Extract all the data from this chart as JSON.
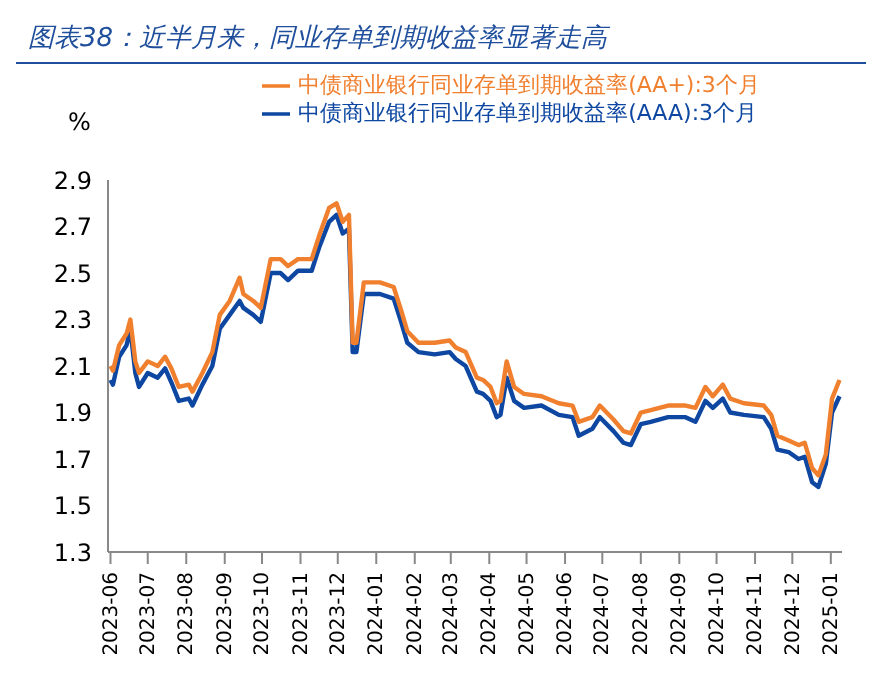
{
  "chart_data": {
    "type": "line",
    "title": "图表38：近半月来，同业存单到期收益率显著走高",
    "ylabel": "%",
    "x": [
      "2023-06-01",
      "2023-06-03",
      "2023-06-08",
      "2023-06-14",
      "2023-06-17",
      "2023-06-21",
      "2023-06-24",
      "2023-07-01",
      "2023-07-09",
      "2023-07-15",
      "2023-07-20",
      "2023-07-26",
      "2023-08-03",
      "2023-08-06",
      "2023-08-14",
      "2023-08-22",
      "2023-08-28",
      "2023-09-05",
      "2023-09-13",
      "2023-09-16",
      "2023-09-24",
      "2023-09-30",
      "2023-10-08",
      "2023-10-16",
      "2023-10-22",
      "2023-10-30",
      "2023-11-10",
      "2023-11-16",
      "2023-11-24",
      "2023-11-30",
      "2023-12-05",
      "2023-12-10",
      "2023-12-13",
      "2023-12-16",
      "2023-12-22",
      "2024-01-04",
      "2024-01-15",
      "2024-01-21",
      "2024-01-26",
      "2024-02-04",
      "2024-02-17",
      "2024-02-29",
      "2024-03-05",
      "2024-03-13",
      "2024-03-22",
      "2024-03-27",
      "2024-04-02",
      "2024-04-07",
      "2024-04-10",
      "2024-04-15",
      "2024-04-21",
      "2024-04-29",
      "2024-05-13",
      "2024-05-27",
      "2024-06-07",
      "2024-06-12",
      "2024-06-23",
      "2024-06-29",
      "2024-07-10",
      "2024-07-18",
      "2024-07-24",
      "2024-08-01",
      "2024-08-09",
      "2024-08-23",
      "2024-09-06",
      "2024-09-14",
      "2024-09-22",
      "2024-09-28",
      "2024-10-06",
      "2024-10-12",
      "2024-10-23",
      "2024-11-08",
      "2024-11-14",
      "2024-11-19",
      "2024-11-28",
      "2024-12-06",
      "2024-12-11",
      "2024-12-17",
      "2024-12-22",
      "2024-12-28",
      "2025-01-02",
      "2025-01-08"
    ],
    "series": [
      {
        "name": "中债商业银行同业存单到期收益率(AAA):3个月",
        "color": "#0d47a1",
        "values": [
          2.04,
          2.02,
          2.14,
          2.19,
          2.26,
          2.07,
          2.01,
          2.07,
          2.05,
          2.09,
          2.03,
          1.95,
          1.96,
          1.93,
          2.02,
          2.1,
          2.26,
          2.32,
          2.38,
          2.35,
          2.32,
          2.29,
          2.5,
          2.5,
          2.47,
          2.51,
          2.51,
          2.61,
          2.72,
          2.75,
          2.67,
          2.69,
          2.16,
          2.16,
          2.41,
          2.41,
          2.39,
          2.29,
          2.2,
          2.16,
          2.15,
          2.16,
          2.13,
          2.1,
          1.99,
          1.98,
          1.95,
          1.88,
          1.89,
          2.05,
          1.95,
          1.92,
          1.93,
          1.89,
          1.88,
          1.8,
          1.83,
          1.88,
          1.82,
          1.77,
          1.76,
          1.85,
          1.86,
          1.88,
          1.88,
          1.86,
          1.95,
          1.92,
          1.96,
          1.9,
          1.89,
          1.88,
          1.83,
          1.74,
          1.73,
          1.7,
          1.71,
          1.6,
          1.58,
          1.68,
          1.9,
          1.97
        ]
      },
      {
        "name": "中债商业银行同业存单到期收益率(AA+):3个月",
        "color": "#f07f2e",
        "values": [
          2.1,
          2.08,
          2.19,
          2.24,
          2.3,
          2.12,
          2.07,
          2.12,
          2.1,
          2.14,
          2.09,
          2.01,
          2.02,
          1.99,
          2.07,
          2.16,
          2.32,
          2.38,
          2.48,
          2.41,
          2.38,
          2.35,
          2.56,
          2.56,
          2.53,
          2.56,
          2.56,
          2.66,
          2.78,
          2.8,
          2.72,
          2.75,
          2.2,
          2.2,
          2.46,
          2.46,
          2.44,
          2.34,
          2.25,
          2.2,
          2.2,
          2.21,
          2.18,
          2.16,
          2.05,
          2.04,
          2.01,
          1.94,
          1.95,
          2.12,
          2.01,
          1.98,
          1.97,
          1.94,
          1.93,
          1.86,
          1.88,
          1.93,
          1.87,
          1.82,
          1.81,
          1.9,
          1.91,
          1.93,
          1.93,
          1.92,
          2.01,
          1.97,
          2.02,
          1.96,
          1.94,
          1.93,
          1.89,
          1.8,
          1.78,
          1.76,
          1.77,
          1.66,
          1.63,
          1.72,
          1.96,
          2.04
        ]
      }
    ],
    "xlim": [
      "2023-05-30",
      "2025-01-10"
    ],
    "xticks": [
      "2023-06",
      "2023-07",
      "2023-08",
      "2023-09",
      "2023-10",
      "2023-11",
      "2023-12",
      "2024-01",
      "2024-02",
      "2024-03",
      "2024-04",
      "2024-05",
      "2024-06",
      "2024-07",
      "2024-08",
      "2024-09",
      "2024-10",
      "2024-11",
      "2024-12",
      "2025-01"
    ],
    "ylim": [
      1.3,
      2.9
    ],
    "yticks": [
      1.3,
      1.5,
      1.7,
      1.9,
      2.1,
      2.3,
      2.5,
      2.7,
      2.9
    ],
    "grid": false,
    "legend": "top",
    "marker": "none",
    "line_style": "solid"
  }
}
